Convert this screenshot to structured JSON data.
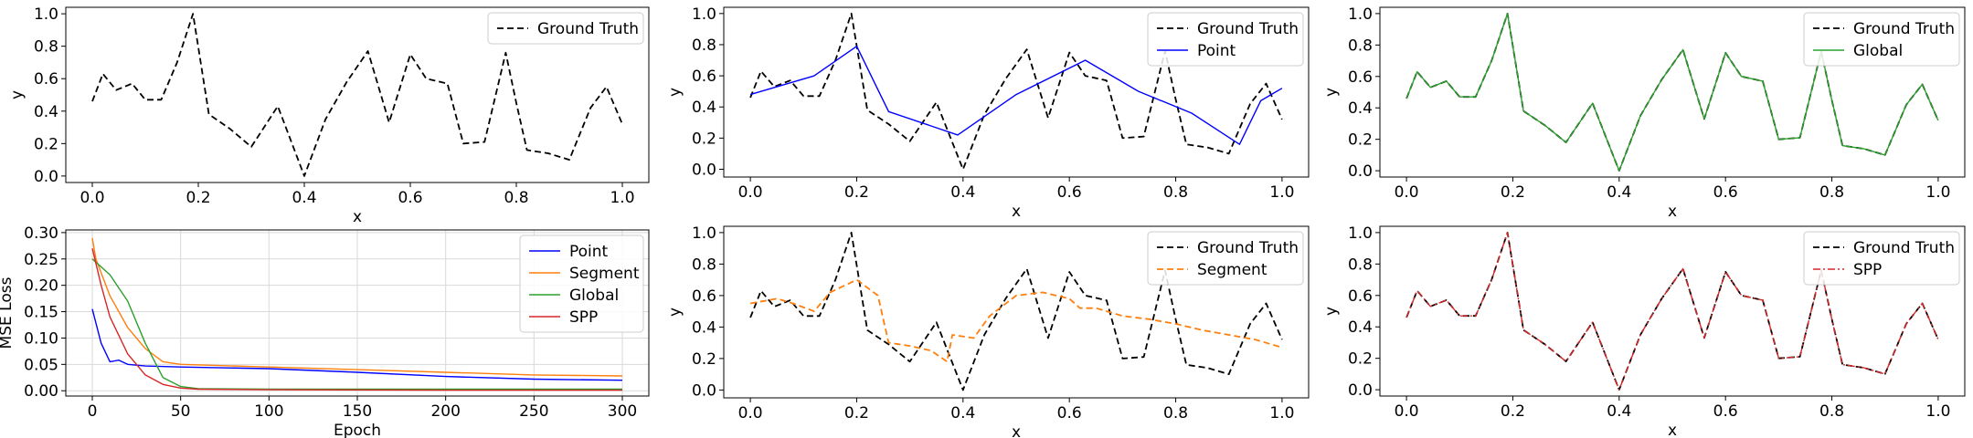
{
  "chart_data": [
    {
      "type": "line",
      "xlabel": "x",
      "ylabel": "y",
      "xlim": [
        -0.05,
        1.05
      ],
      "ylim": [
        -0.04,
        1.04
      ],
      "xticks": [
        "0.0",
        "0.2",
        "0.4",
        "0.6",
        "0.8",
        "1.0"
      ],
      "yticks": [
        "0.0",
        "0.2",
        "0.4",
        "0.6",
        "0.8",
        "1.0"
      ],
      "legend_position": "top-right",
      "series": [
        {
          "name": "Ground Truth",
          "style": "dashed",
          "color": "#000000",
          "x": [
            0.0,
            0.02,
            0.045,
            0.075,
            0.1,
            0.13,
            0.16,
            0.19,
            0.22,
            0.26,
            0.3,
            0.35,
            0.4,
            0.44,
            0.48,
            0.52,
            0.56,
            0.6,
            0.63,
            0.67,
            0.7,
            0.74,
            0.78,
            0.8,
            0.82,
            0.86,
            0.9,
            0.94,
            0.97,
            1.0
          ],
          "y": [
            0.46,
            0.63,
            0.53,
            0.57,
            0.47,
            0.47,
            0.7,
            1.0,
            0.38,
            0.29,
            0.18,
            0.43,
            0.0,
            0.35,
            0.58,
            0.77,
            0.33,
            0.75,
            0.6,
            0.57,
            0.2,
            0.21,
            0.76,
            0.45,
            0.16,
            0.14,
            0.1,
            0.42,
            0.55,
            0.32
          ]
        }
      ]
    },
    {
      "type": "line",
      "xlabel": "x",
      "ylabel": "y",
      "xlim": [
        -0.05,
        1.05
      ],
      "ylim": [
        -0.05,
        1.04
      ],
      "xticks": [
        "0.0",
        "0.2",
        "0.4",
        "0.6",
        "0.8",
        "1.0"
      ],
      "yticks": [
        "0.0",
        "0.2",
        "0.4",
        "0.6",
        "0.8",
        "1.0"
      ],
      "legend_position": "top-right",
      "series": [
        {
          "name": "Ground Truth",
          "style": "dashed",
          "color": "#000000",
          "x": [
            0.0,
            0.02,
            0.045,
            0.075,
            0.1,
            0.13,
            0.16,
            0.19,
            0.22,
            0.26,
            0.3,
            0.35,
            0.4,
            0.44,
            0.48,
            0.52,
            0.56,
            0.6,
            0.63,
            0.67,
            0.7,
            0.74,
            0.78,
            0.8,
            0.82,
            0.86,
            0.9,
            0.94,
            0.97,
            1.0
          ],
          "y": [
            0.46,
            0.63,
            0.53,
            0.57,
            0.47,
            0.47,
            0.7,
            1.0,
            0.38,
            0.29,
            0.18,
            0.43,
            0.0,
            0.35,
            0.58,
            0.77,
            0.33,
            0.75,
            0.6,
            0.57,
            0.2,
            0.21,
            0.76,
            0.45,
            0.16,
            0.14,
            0.1,
            0.42,
            0.55,
            0.32
          ]
        },
        {
          "name": "Point",
          "style": "solid",
          "color": "#0000ff",
          "x": [
            0.0,
            0.12,
            0.2,
            0.26,
            0.39,
            0.5,
            0.63,
            0.73,
            0.83,
            0.92,
            0.96,
            1.0
          ],
          "y": [
            0.48,
            0.6,
            0.79,
            0.37,
            0.22,
            0.48,
            0.7,
            0.5,
            0.36,
            0.16,
            0.44,
            0.52
          ]
        }
      ]
    },
    {
      "type": "line",
      "xlabel": "x",
      "ylabel": "y",
      "xlim": [
        -0.05,
        1.05
      ],
      "ylim": [
        -0.04,
        1.04
      ],
      "xticks": [
        "0.0",
        "0.2",
        "0.4",
        "0.6",
        "0.8",
        "1.0"
      ],
      "yticks": [
        "0.0",
        "0.2",
        "0.4",
        "0.6",
        "0.8",
        "1.0"
      ],
      "legend_position": "top-right",
      "series": [
        {
          "name": "Ground Truth",
          "style": "dashed",
          "color": "#000000",
          "x": [
            0.0,
            0.02,
            0.045,
            0.075,
            0.1,
            0.13,
            0.16,
            0.19,
            0.22,
            0.26,
            0.3,
            0.35,
            0.4,
            0.44,
            0.48,
            0.52,
            0.56,
            0.6,
            0.63,
            0.67,
            0.7,
            0.74,
            0.78,
            0.8,
            0.82,
            0.86,
            0.9,
            0.94,
            0.97,
            1.0
          ],
          "y": [
            0.46,
            0.63,
            0.53,
            0.57,
            0.47,
            0.47,
            0.7,
            1.0,
            0.38,
            0.29,
            0.18,
            0.43,
            0.0,
            0.35,
            0.58,
            0.77,
            0.33,
            0.75,
            0.6,
            0.57,
            0.2,
            0.21,
            0.76,
            0.45,
            0.16,
            0.14,
            0.1,
            0.42,
            0.55,
            0.32
          ]
        },
        {
          "name": "Global",
          "style": "solid",
          "color": "#2ca02c",
          "x": [
            0.0,
            0.02,
            0.045,
            0.075,
            0.1,
            0.13,
            0.16,
            0.19,
            0.22,
            0.26,
            0.3,
            0.35,
            0.4,
            0.44,
            0.48,
            0.52,
            0.56,
            0.6,
            0.63,
            0.67,
            0.7,
            0.74,
            0.78,
            0.8,
            0.82,
            0.86,
            0.9,
            0.94,
            0.97,
            1.0
          ],
          "y": [
            0.46,
            0.63,
            0.53,
            0.57,
            0.47,
            0.47,
            0.7,
            1.0,
            0.38,
            0.29,
            0.18,
            0.43,
            0.0,
            0.35,
            0.58,
            0.77,
            0.33,
            0.75,
            0.6,
            0.57,
            0.2,
            0.21,
            0.76,
            0.45,
            0.16,
            0.14,
            0.1,
            0.42,
            0.55,
            0.32
          ]
        }
      ]
    },
    {
      "type": "line",
      "xlabel": "Epoch",
      "ylabel": "MSE Loss",
      "xlim": [
        -15,
        315
      ],
      "ylim": [
        -0.01,
        0.305
      ],
      "xticks": [
        "0",
        "50",
        "100",
        "150",
        "200",
        "250",
        "300"
      ],
      "yticks": [
        "0.00",
        "0.05",
        "0.10",
        "0.15",
        "0.20",
        "0.25",
        "0.30"
      ],
      "grid": true,
      "legend_position": "top-right",
      "series": [
        {
          "name": "Point",
          "style": "solid",
          "color": "#0000ff",
          "x": [
            0,
            5,
            10,
            15,
            20,
            30,
            50,
            100,
            150,
            200,
            250,
            300
          ],
          "y": [
            0.155,
            0.09,
            0.055,
            0.058,
            0.05,
            0.047,
            0.045,
            0.042,
            0.035,
            0.027,
            0.022,
            0.02
          ]
        },
        {
          "name": "Segment",
          "style": "solid",
          "color": "#ff7f0e",
          "x": [
            0,
            2,
            10,
            20,
            30,
            40,
            50,
            100,
            150,
            200,
            250,
            300
          ],
          "y": [
            0.29,
            0.25,
            0.18,
            0.12,
            0.08,
            0.055,
            0.05,
            0.045,
            0.04,
            0.035,
            0.03,
            0.028
          ]
        },
        {
          "name": "Global",
          "style": "solid",
          "color": "#2ca02c",
          "x": [
            0,
            10,
            20,
            30,
            40,
            50,
            60,
            100,
            200,
            300
          ],
          "y": [
            0.25,
            0.22,
            0.17,
            0.09,
            0.025,
            0.008,
            0.004,
            0.003,
            0.003,
            0.003
          ]
        },
        {
          "name": "SPP",
          "style": "solid",
          "color": "#d62728",
          "x": [
            0,
            5,
            10,
            20,
            30,
            40,
            50,
            60,
            100,
            200,
            300
          ],
          "y": [
            0.27,
            0.2,
            0.14,
            0.07,
            0.03,
            0.012,
            0.005,
            0.003,
            0.002,
            0.001,
            0.001
          ]
        }
      ]
    },
    {
      "type": "line",
      "xlabel": "x",
      "ylabel": "y",
      "xlim": [
        -0.05,
        1.05
      ],
      "ylim": [
        -0.05,
        1.04
      ],
      "xticks": [
        "0.0",
        "0.2",
        "0.4",
        "0.6",
        "0.8",
        "1.0"
      ],
      "yticks": [
        "0.0",
        "0.2",
        "0.4",
        "0.6",
        "0.8",
        "1.0"
      ],
      "legend_position": "top-right",
      "series": [
        {
          "name": "Ground Truth",
          "style": "dashed",
          "color": "#000000",
          "x": [
            0.0,
            0.02,
            0.045,
            0.075,
            0.1,
            0.13,
            0.16,
            0.19,
            0.22,
            0.26,
            0.3,
            0.35,
            0.4,
            0.44,
            0.48,
            0.52,
            0.56,
            0.6,
            0.63,
            0.67,
            0.7,
            0.74,
            0.78,
            0.8,
            0.82,
            0.86,
            0.9,
            0.94,
            0.97,
            1.0
          ],
          "y": [
            0.46,
            0.63,
            0.53,
            0.57,
            0.47,
            0.47,
            0.7,
            1.0,
            0.38,
            0.29,
            0.18,
            0.43,
            0.0,
            0.35,
            0.58,
            0.77,
            0.33,
            0.75,
            0.6,
            0.57,
            0.2,
            0.21,
            0.76,
            0.45,
            0.16,
            0.14,
            0.1,
            0.42,
            0.55,
            0.32
          ]
        },
        {
          "name": "Segment",
          "style": "dashed",
          "color": "#ff7f0e",
          "x": [
            0.0,
            0.05,
            0.08,
            0.12,
            0.15,
            0.2,
            0.24,
            0.26,
            0.3,
            0.34,
            0.37,
            0.38,
            0.42,
            0.45,
            0.5,
            0.55,
            0.6,
            0.62,
            0.65,
            0.7,
            0.75,
            0.8,
            0.85,
            0.9,
            0.95,
            1.0
          ],
          "y": [
            0.55,
            0.58,
            0.55,
            0.5,
            0.62,
            0.7,
            0.6,
            0.3,
            0.28,
            0.25,
            0.18,
            0.35,
            0.33,
            0.47,
            0.6,
            0.62,
            0.58,
            0.52,
            0.52,
            0.47,
            0.45,
            0.42,
            0.38,
            0.35,
            0.32,
            0.27
          ]
        }
      ]
    },
    {
      "type": "line",
      "xlabel": "x",
      "ylabel": "y",
      "xlim": [
        -0.05,
        1.05
      ],
      "ylim": [
        -0.04,
        1.04
      ],
      "xticks": [
        "0.0",
        "0.2",
        "0.4",
        "0.6",
        "0.8",
        "1.0"
      ],
      "yticks": [
        "0.0",
        "0.2",
        "0.4",
        "0.6",
        "0.8",
        "1.0"
      ],
      "legend_position": "top-right",
      "series": [
        {
          "name": "Ground Truth",
          "style": "dashed",
          "color": "#000000",
          "x": [
            0.0,
            0.02,
            0.045,
            0.075,
            0.1,
            0.13,
            0.16,
            0.19,
            0.22,
            0.26,
            0.3,
            0.35,
            0.4,
            0.44,
            0.48,
            0.52,
            0.56,
            0.6,
            0.63,
            0.67,
            0.7,
            0.74,
            0.78,
            0.8,
            0.82,
            0.86,
            0.9,
            0.94,
            0.97,
            1.0
          ],
          "y": [
            0.46,
            0.63,
            0.53,
            0.57,
            0.47,
            0.47,
            0.7,
            1.0,
            0.38,
            0.29,
            0.18,
            0.43,
            0.0,
            0.35,
            0.58,
            0.77,
            0.33,
            0.75,
            0.6,
            0.57,
            0.2,
            0.21,
            0.76,
            0.45,
            0.16,
            0.14,
            0.1,
            0.42,
            0.55,
            0.32
          ]
        },
        {
          "name": "SPP",
          "style": "dashdot",
          "color": "#d62728",
          "x": [
            0.0,
            0.02,
            0.045,
            0.075,
            0.1,
            0.13,
            0.16,
            0.19,
            0.22,
            0.26,
            0.3,
            0.35,
            0.4,
            0.44,
            0.48,
            0.52,
            0.56,
            0.6,
            0.63,
            0.67,
            0.7,
            0.74,
            0.78,
            0.8,
            0.82,
            0.86,
            0.9,
            0.94,
            0.97,
            1.0
          ],
          "y": [
            0.46,
            0.63,
            0.53,
            0.57,
            0.47,
            0.47,
            0.7,
            1.0,
            0.38,
            0.29,
            0.18,
            0.43,
            0.0,
            0.35,
            0.58,
            0.77,
            0.33,
            0.75,
            0.6,
            0.57,
            0.2,
            0.21,
            0.76,
            0.45,
            0.16,
            0.14,
            0.1,
            0.42,
            0.55,
            0.32
          ]
        }
      ]
    }
  ]
}
